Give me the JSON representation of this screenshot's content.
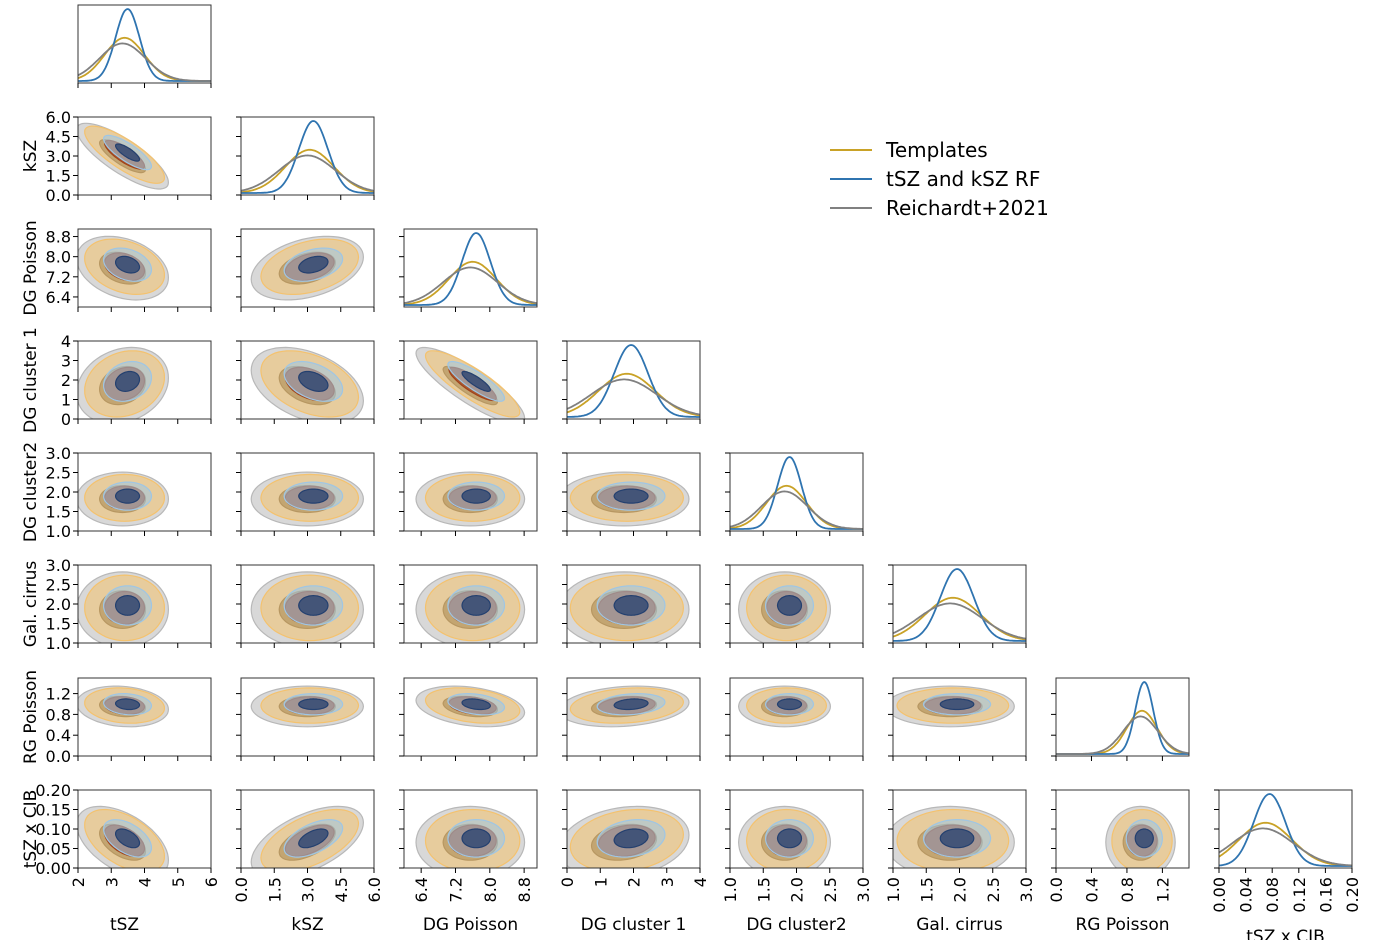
{
  "chart_data": {
    "type": "corner",
    "parameters": [
      {
        "label": "tSZ",
        "range": [
          2,
          6
        ],
        "ticks": [
          "2",
          "3",
          "4",
          "5",
          "6"
        ],
        "tick_values": [
          2,
          3,
          4,
          5,
          6
        ],
        "peak": 3.4,
        "sigma": 0.6
      },
      {
        "label": "kSZ",
        "range": [
          0,
          6
        ],
        "ticks": [
          "0.0",
          "1.5",
          "3.0",
          "4.5",
          "6.0"
        ],
        "tick_values": [
          0,
          1.5,
          3,
          4.5,
          6
        ],
        "peak": 3.1,
        "sigma": 1.1
      },
      {
        "label": "DG Poisson",
        "range": [
          6.0,
          9.1
        ],
        "ticks": [
          "6.4",
          "7.2",
          "8.0",
          "8.8"
        ],
        "tick_values": [
          6.4,
          7.2,
          8.0,
          8.8
        ],
        "peak": 7.6,
        "sigma": 0.55
      },
      {
        "label": "DG cluster 1",
        "range": [
          0,
          4
        ],
        "ticks": [
          "0",
          "1",
          "2",
          "3",
          "4"
        ],
        "tick_values": [
          0,
          1,
          2,
          3,
          4
        ],
        "peak": 1.8,
        "sigma": 0.85
      },
      {
        "label": "DG cluster2",
        "range": [
          1.0,
          3.0
        ],
        "ticks": [
          "1.0",
          "1.5",
          "2.0",
          "2.5",
          "3.0"
        ],
        "tick_values": [
          1,
          1.5,
          2,
          2.5,
          3
        ],
        "peak": 1.85,
        "sigma": 0.3
      },
      {
        "label": "Gal. cirrus",
        "range": [
          1.0,
          3.0
        ],
        "ticks": [
          "1.0",
          "1.5",
          "2.0",
          "2.5",
          "3.0"
        ],
        "tick_values": [
          1,
          1.5,
          2,
          2.5,
          3
        ],
        "peak": 1.9,
        "sigma": 0.42
      },
      {
        "label": "RG Poisson",
        "range": [
          0.0,
          1.5
        ],
        "ticks": [
          "0.0",
          "0.4",
          "0.8",
          "1.2"
        ],
        "tick_values": [
          0,
          0.4,
          0.8,
          1.2
        ],
        "peak": 0.97,
        "sigma": 0.17
      },
      {
        "label": "tSZ x CIB",
        "range": [
          0.0,
          0.2
        ],
        "ticks": [
          "0.00",
          "0.04",
          "0.08",
          "0.12",
          "0.16",
          "0.20"
        ],
        "tick_values": [
          0,
          0.04,
          0.08,
          0.12,
          0.16,
          0.2
        ],
        "peak": 0.07,
        "sigma": 0.04
      }
    ],
    "y_axis_ticks": {
      "kSZ": {
        "ticks": [
          "0.0",
          "1.5",
          "3.0",
          "4.5",
          "6.0"
        ],
        "tick_values": [
          0,
          1.5,
          3,
          4.5,
          6
        ],
        "range": [
          0,
          6
        ]
      },
      "DG Poisson": {
        "ticks": [
          "6.4",
          "7.2",
          "8.0",
          "8.8"
        ],
        "tick_values": [
          6.4,
          7.2,
          8.0,
          8.8
        ],
        "range": [
          6.0,
          9.1
        ]
      },
      "DG cluster 1": {
        "ticks": [
          "0",
          "1",
          "2",
          "3",
          "4"
        ],
        "tick_values": [
          0,
          1,
          2,
          3,
          4
        ],
        "range": [
          0,
          4
        ]
      },
      "DG cluster2": {
        "ticks": [
          "1.0",
          "1.5",
          "2.0",
          "2.5",
          "3.0"
        ],
        "tick_values": [
          1,
          1.5,
          2,
          2.5,
          3
        ],
        "range": [
          1,
          3
        ]
      },
      "Gal. cirrus": {
        "ticks": [
          "1.0",
          "1.5",
          "2.0",
          "2.5",
          "3.0"
        ],
        "tick_values": [
          1,
          1.5,
          2,
          2.5,
          3
        ],
        "range": [
          1,
          3
        ]
      },
      "RG Poisson": {
        "ticks": [
          "0.0",
          "0.4",
          "0.8",
          "1.2"
        ],
        "tick_values": [
          0,
          0.4,
          0.8,
          1.2
        ],
        "range": [
          0,
          1.5
        ]
      },
      "tSZ x CIB": {
        "ticks": [
          "0.00",
          "0.05",
          "0.10",
          "0.15",
          "0.20"
        ],
        "tick_values": [
          0,
          0.05,
          0.1,
          0.15,
          0.2
        ],
        "range": [
          0,
          0.2
        ]
      }
    },
    "series": [
      {
        "name": "Templates",
        "color": "#c9a227",
        "fill_outer": "#f4c26e",
        "fill_inner": "#a0421c"
      },
      {
        "name": "tSZ and kSZ RF",
        "color": "#2f74b0",
        "fill_outer": "#9fc6e4",
        "fill_inner": "#24406f"
      },
      {
        "name": "Reichardt+2021",
        "color": "#808080",
        "fill_outer": "#b8b8b8",
        "fill_inner": "#6e6355"
      }
    ],
    "legend_position": "top-right",
    "grid": false
  }
}
